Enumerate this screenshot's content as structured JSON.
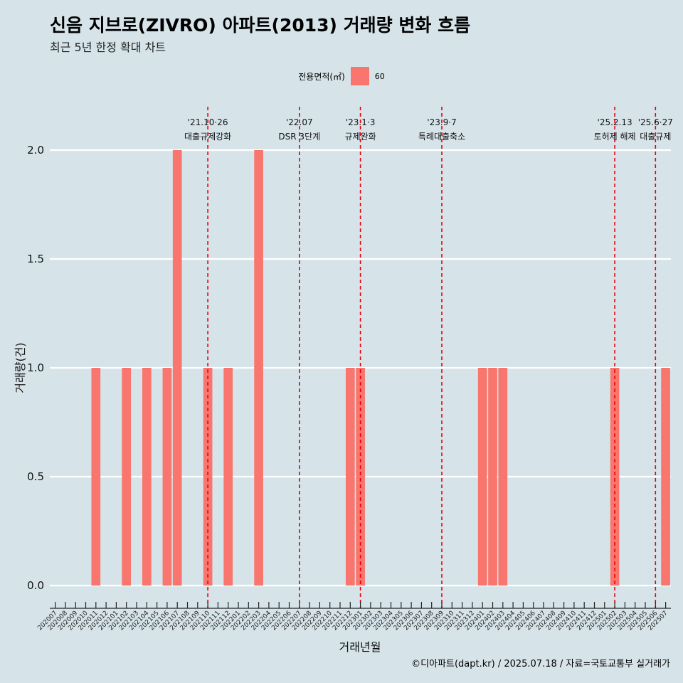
{
  "title": "신음 지브로(ZIVRO) 아파트(2013) 거래량 변화 흐름",
  "subtitle": "최근 5년 한정 확대 차트",
  "caption": "©디아파트(dapt.kr) / 2025.07.18 / 자료=국토교통부 실거래가",
  "legend": {
    "title": "전용면적(㎡)",
    "label": "60",
    "color": "#f8766d"
  },
  "chart_data": {
    "type": "bar",
    "xlabel": "거래년월",
    "ylabel": "거래량(건)",
    "ylim": [
      0,
      2
    ],
    "yticks": [
      "0.0",
      "0.5",
      "1.0",
      "1.5",
      "2.0"
    ],
    "categories": [
      "202007",
      "202008",
      "202009",
      "202010",
      "202011",
      "202012",
      "202101",
      "202102",
      "202103",
      "202104",
      "202105",
      "202106",
      "202107",
      "202108",
      "202109",
      "202110",
      "202111",
      "202112",
      "202201",
      "202202",
      "202203",
      "202204",
      "202205",
      "202206",
      "202207",
      "202208",
      "202209",
      "202210",
      "202211",
      "202212",
      "202301",
      "202302",
      "202303",
      "202304",
      "202305",
      "202306",
      "202307",
      "202308",
      "202309",
      "202310",
      "202311",
      "202312",
      "202401",
      "202402",
      "202403",
      "202404",
      "202405",
      "202406",
      "202407",
      "202408",
      "202409",
      "202410",
      "202411",
      "202412",
      "202501",
      "202502",
      "202503",
      "202504",
      "202505",
      "202506",
      "202507"
    ],
    "bars": [
      {
        "x": "202011",
        "y": 1
      },
      {
        "x": "202102",
        "y": 1
      },
      {
        "x": "202104",
        "y": 1
      },
      {
        "x": "202106",
        "y": 1
      },
      {
        "x": "202107",
        "y": 2
      },
      {
        "x": "202110",
        "y": 1
      },
      {
        "x": "202112",
        "y": 1
      },
      {
        "x": "202203",
        "y": 2
      },
      {
        "x": "202212",
        "y": 1
      },
      {
        "x": "202301",
        "y": 1
      },
      {
        "x": "202401",
        "y": 1
      },
      {
        "x": "202402",
        "y": 1
      },
      {
        "x": "202403",
        "y": 1
      },
      {
        "x": "202502",
        "y": 1
      },
      {
        "x": "202507",
        "y": 1
      }
    ],
    "events": [
      {
        "x": "202110",
        "date": "'21.10·26",
        "label": "대출규제강화"
      },
      {
        "x": "202207",
        "date": "'22.07",
        "label": "DSR 3단계"
      },
      {
        "x": "202301",
        "date": "'23.1·3",
        "label": "규제완화"
      },
      {
        "x": "202309",
        "date": "'23.9·7",
        "label": "특례대출축소"
      },
      {
        "x": "202502",
        "date": "'25.2.13",
        "label": "토허제 해제"
      },
      {
        "x": "202506",
        "date": "'25.6·27",
        "label": "대출규제"
      }
    ],
    "grid": true,
    "legend_position": "top"
  }
}
